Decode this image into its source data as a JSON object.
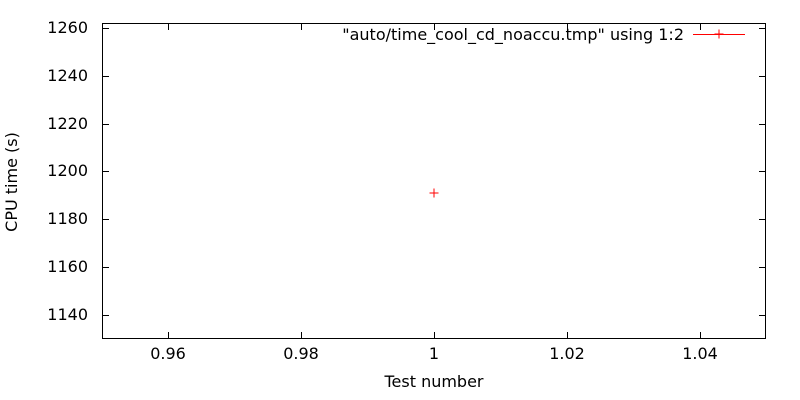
{
  "chart_data": {
    "type": "scatter",
    "title": "",
    "xlabel": "Test number",
    "ylabel": "CPU time (s)",
    "xlim": [
      0.95,
      1.05
    ],
    "ylim": [
      1130,
      1262
    ],
    "x_ticks": [
      0.96,
      0.98,
      1,
      1.02,
      1.04
    ],
    "x_tick_labels": [
      "0.96",
      "0.98",
      "1",
      "1.02",
      "1.04"
    ],
    "y_ticks": [
      1140,
      1160,
      1180,
      1200,
      1220,
      1240,
      1260
    ],
    "y_tick_labels": [
      "1140",
      "1160",
      "1180",
      "1200",
      "1220",
      "1240",
      "1260"
    ],
    "grid": false,
    "legend_position": "top-right-inside",
    "axis_color": "#000000",
    "text_color": "#000000",
    "background_color": "#ffffff",
    "series": [
      {
        "name": "\"auto/time_cool_cd_noaccu.tmp\" using 1:2",
        "marker": "plus",
        "color": "#ff0000",
        "points": [
          {
            "x": 1,
            "y": 1190.8
          }
        ]
      }
    ]
  }
}
